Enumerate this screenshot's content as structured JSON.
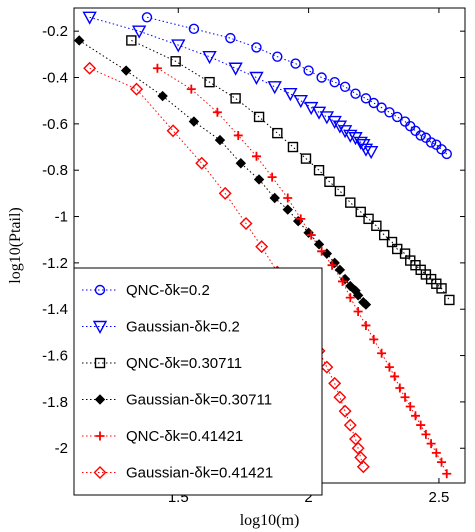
{
  "chart_data": {
    "type": "scatter",
    "xlabel": "log10(m)",
    "ylabel": "log10(Ptail)",
    "xlim": [
      1.1,
      2.6
    ],
    "ylim": [
      -2.15,
      -0.1
    ],
    "x_ticks": [
      1.5,
      2,
      2.5
    ],
    "x_tick_labels": [
      "1.5",
      "2",
      "2.5"
    ],
    "y_ticks": [
      -0.2,
      -0.4,
      -0.6,
      -0.8,
      -1,
      -1.2,
      -1.4,
      -1.6,
      -1.8,
      -2
    ],
    "y_tick_labels": [
      "-0.2",
      "-0.4",
      "-0.6",
      "-0.8",
      "-1",
      "-1.2",
      "-1.4",
      "-1.6",
      "-1.8",
      "-2"
    ],
    "grid": false,
    "legend_position": "bottom-left",
    "series": [
      {
        "name": "QNC-δk=0.2",
        "color": "#0000ff",
        "marker": "circle",
        "x": [
          1.38,
          1.56,
          1.7,
          1.8,
          1.88,
          1.95,
          2.0,
          2.05,
          2.1,
          2.14,
          2.18,
          2.22,
          2.25,
          2.28,
          2.31,
          2.34,
          2.37,
          2.39,
          2.41,
          2.43,
          2.45,
          2.47,
          2.49,
          2.51,
          2.53
        ],
        "y": [
          -0.14,
          -0.19,
          -0.23,
          -0.27,
          -0.31,
          -0.34,
          -0.37,
          -0.4,
          -0.42,
          -0.44,
          -0.47,
          -0.49,
          -0.51,
          -0.53,
          -0.55,
          -0.57,
          -0.59,
          -0.61,
          -0.63,
          -0.65,
          -0.66,
          -0.68,
          -0.69,
          -0.71,
          -0.73
        ]
      },
      {
        "name": "Gaussian-δk=0.2",
        "color": "#0000ff",
        "marker": "triangle-down",
        "x": [
          1.16,
          1.35,
          1.5,
          1.62,
          1.72,
          1.8,
          1.87,
          1.93,
          1.97,
          2.01,
          2.04,
          2.07,
          2.1,
          2.12,
          2.14,
          2.16,
          2.18,
          2.2,
          2.21,
          2.22,
          2.24
        ],
        "y": [
          -0.14,
          -0.2,
          -0.26,
          -0.31,
          -0.36,
          -0.4,
          -0.44,
          -0.47,
          -0.5,
          -0.53,
          -0.55,
          -0.57,
          -0.59,
          -0.61,
          -0.63,
          -0.65,
          -0.66,
          -0.68,
          -0.69,
          -0.71,
          -0.72
        ]
      },
      {
        "name": "QNC-δk=0.30711",
        "color": "#000000",
        "marker": "square",
        "x": [
          1.32,
          1.49,
          1.62,
          1.72,
          1.81,
          1.88,
          1.94,
          1.99,
          2.04,
          2.08,
          2.12,
          2.16,
          2.2,
          2.23,
          2.26,
          2.29,
          2.32,
          2.34,
          2.37,
          2.39,
          2.41,
          2.43,
          2.45,
          2.47,
          2.49,
          2.51,
          2.54
        ],
        "y": [
          -0.24,
          -0.33,
          -0.42,
          -0.49,
          -0.57,
          -0.64,
          -0.7,
          -0.75,
          -0.8,
          -0.85,
          -0.89,
          -0.94,
          -0.98,
          -1.01,
          -1.04,
          -1.08,
          -1.11,
          -1.14,
          -1.16,
          -1.19,
          -1.21,
          -1.23,
          -1.25,
          -1.27,
          -1.29,
          -1.31,
          -1.36
        ]
      },
      {
        "name": "Gaussian-δk=0.30711",
        "color": "#000000",
        "marker": "diamond-filled",
        "x": [
          1.12,
          1.3,
          1.44,
          1.56,
          1.66,
          1.74,
          1.81,
          1.87,
          1.92,
          1.96,
          2.0,
          2.04,
          2.07,
          2.1,
          2.12,
          2.14,
          2.16,
          2.18,
          2.19,
          2.21,
          2.22
        ],
        "y": [
          -0.24,
          -0.37,
          -0.48,
          -0.59,
          -0.67,
          -0.77,
          -0.84,
          -0.92,
          -0.97,
          -1.02,
          -1.07,
          -1.12,
          -1.16,
          -1.2,
          -1.23,
          -1.27,
          -1.3,
          -1.32,
          -1.34,
          -1.37,
          -1.38
        ]
      },
      {
        "name": "QNC-δk=0.41421",
        "color": "#ff0000",
        "marker": "plus",
        "x": [
          1.42,
          1.55,
          1.65,
          1.73,
          1.8,
          1.86,
          1.92,
          1.97,
          2.01,
          2.05,
          2.09,
          2.13,
          2.16,
          2.19,
          2.22,
          2.25,
          2.28,
          2.31,
          2.33,
          2.35,
          2.37,
          2.39,
          2.41,
          2.43,
          2.45,
          2.47,
          2.49,
          2.51,
          2.53
        ],
        "y": [
          -0.36,
          -0.45,
          -0.55,
          -0.65,
          -0.74,
          -0.83,
          -0.92,
          -1.01,
          -1.08,
          -1.15,
          -1.21,
          -1.28,
          -1.35,
          -1.41,
          -1.47,
          -1.53,
          -1.59,
          -1.65,
          -1.69,
          -1.74,
          -1.78,
          -1.82,
          -1.86,
          -1.9,
          -1.94,
          -1.98,
          -2.02,
          -2.06,
          -2.11
        ]
      },
      {
        "name": "Gaussian-δk=0.41421",
        "color": "#ff0000",
        "marker": "diamond",
        "x": [
          1.16,
          1.34,
          1.48,
          1.59,
          1.68,
          1.76,
          1.82,
          1.88,
          1.93,
          1.97,
          2.01,
          2.04,
          2.07,
          2.1,
          2.12,
          2.14,
          2.16,
          2.18,
          2.19,
          2.2,
          2.21
        ],
        "y": [
          -0.36,
          -0.45,
          -0.63,
          -0.77,
          -0.9,
          -1.03,
          -1.13,
          -1.24,
          -1.33,
          -1.42,
          -1.5,
          -1.58,
          -1.65,
          -1.72,
          -1.78,
          -1.84,
          -1.9,
          -1.96,
          -2.0,
          -2.04,
          -2.08
        ]
      }
    ]
  }
}
